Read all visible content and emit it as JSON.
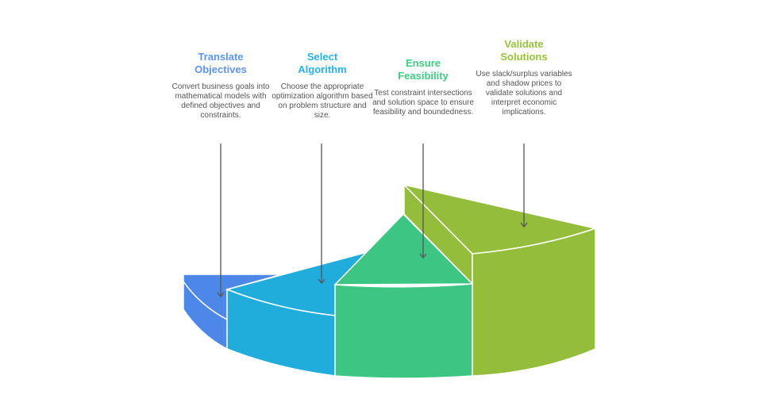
{
  "steps": [
    {
      "title_line1": "Translate",
      "title_line2": "Objectives",
      "description": "Convert business goals into mathematical models with defined objectives and constraints.",
      "color": "#4d88e8",
      "title_color": "#5b95f0"
    },
    {
      "title_line1": "Select",
      "title_line2": "Algorithm",
      "description": "Choose the appropriate optimization algorithm based on problem structure and size.",
      "color": "#21addb",
      "title_color": "#27b2e6"
    },
    {
      "title_line1": "Ensure",
      "title_line2": "Feasibility",
      "description": "Test constraint intersections and solution space to ensure feasibility and boundedness.",
      "color": "#3cc583",
      "title_color": "#3ecb82"
    },
    {
      "title_line1": "Validate",
      "title_line2": "Solutions",
      "description": "Use slack/surplus variables and shadow prices to validate solutions and interpret economic implications.",
      "color": "#93bd3a",
      "title_color": "#97c23c"
    }
  ]
}
